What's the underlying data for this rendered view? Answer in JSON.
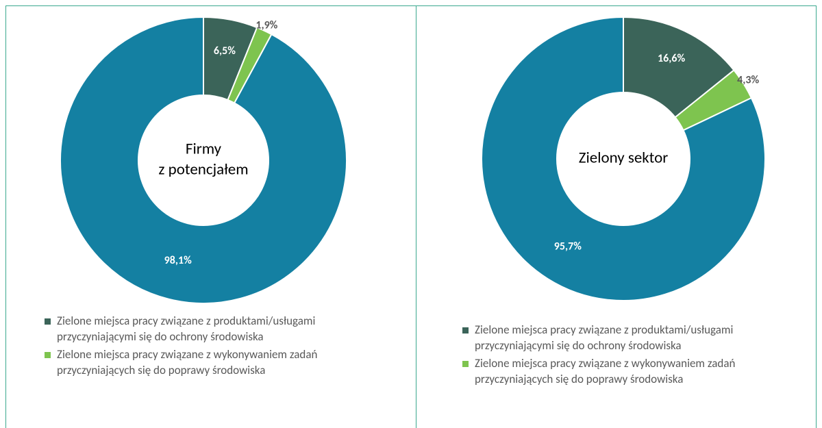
{
  "chart_data": [
    {
      "type": "pie",
      "center_text": [
        "Firmy",
        "z potencjałem"
      ],
      "categories": [
        "Zielone miejsca pracy związane z produktami/usługami przyczyniającymi się do ochrony środowiska",
        "Zielone miejsca pracy związane z wykonywaniem zadań przyczyniających się do poprawy środowiska",
        null
      ],
      "values": [
        6.5,
        1.9,
        98.1
      ],
      "value_labels": [
        "6,5%",
        "1,9%",
        "98,1%"
      ],
      "colors": [
        "#3b6459",
        "#7ec44f",
        "#1480a2"
      ]
    },
    {
      "type": "pie",
      "center_text": [
        "Zielony sektor"
      ],
      "categories": [
        "Zielone miejsca pracy związane z produktami/usługami przyczyniającymi się do ochrony środowiska",
        "Zielone miejsca pracy związane z wykonywaniem zadań przyczyniających się do poprawy środowiska",
        null
      ],
      "values": [
        16.6,
        4.3,
        95.7
      ],
      "value_labels": [
        "16,6%",
        "4,3%",
        "95,7%"
      ],
      "colors": [
        "#3b6459",
        "#7ec44f",
        "#1480a2"
      ]
    }
  ]
}
